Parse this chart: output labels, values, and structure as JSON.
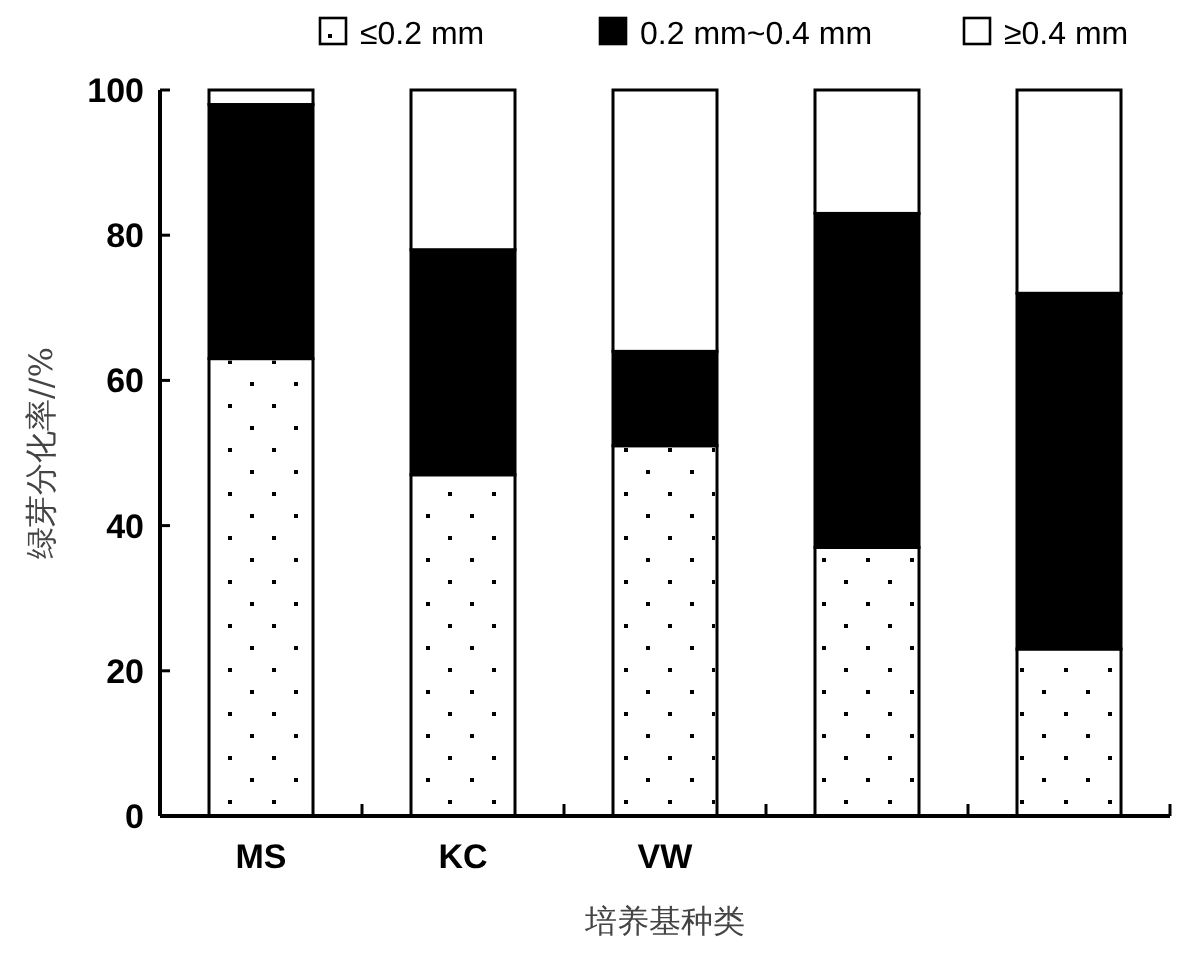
{
  "chart_data": {
    "type": "bar",
    "stacked": true,
    "xlabel": "培养基种类",
    "ylabel": "绿芽分化率//%",
    "categories": [
      "MS",
      "KC",
      "VW",
      null,
      null
    ],
    "series": [
      {
        "name": "≤0.2 mm",
        "color": "#ffffff",
        "values": [
          63,
          47,
          51,
          37,
          23
        ]
      },
      {
        "name": "0.2 mm~0.4 mm",
        "color": "#000000",
        "values": [
          35,
          31,
          13,
          46,
          49
        ]
      },
      {
        "name": "≥0.4 mm",
        "color": "#ffffff",
        "values": [
          2,
          22,
          36,
          17,
          28
        ]
      }
    ],
    "ylim": [
      0,
      100
    ],
    "yticks": [
      0,
      20,
      40,
      60,
      80,
      100
    ],
    "legend": "top"
  }
}
